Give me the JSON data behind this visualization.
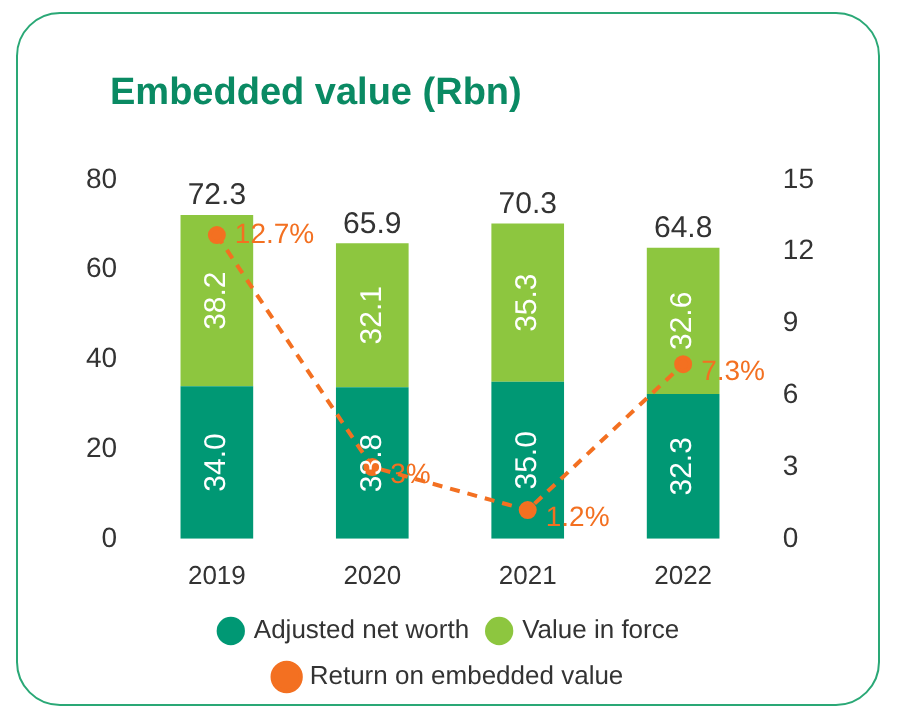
{
  "chart_data": {
    "type": "bar",
    "title": "Embedded value (Rbn)",
    "categories": [
      "2019",
      "2020",
      "2021",
      "2022"
    ],
    "stacked": true,
    "series": [
      {
        "name": "Adjusted net worth",
        "color": "#009874",
        "values": [
          34.0,
          33.8,
          35.0,
          32.3
        ],
        "value_labels": [
          "34.0",
          "33.8",
          "35.0",
          "32.3"
        ]
      },
      {
        "name": "Value in force",
        "color": "#8dc63f",
        "values": [
          38.2,
          32.1,
          35.3,
          32.6
        ],
        "value_labels": [
          "38.2",
          "32.1",
          "35.3",
          "32.6"
        ]
      },
      {
        "name": "Return on embedded value",
        "type": "line",
        "axis": "y2",
        "color": "#f37021",
        "line_style": "dashed",
        "marker": "circle",
        "values": [
          12.7,
          3,
          1.2,
          7.3
        ],
        "value_labels": [
          "12.7%",
          "3%",
          "1.2%",
          "7.3%"
        ]
      }
    ],
    "totals": [
      "72.3",
      "65.9",
      "70.3",
      "64.8"
    ],
    "ylim": [
      0,
      80
    ],
    "yticks": [
      0,
      20,
      40,
      60,
      80
    ],
    "y2lim": [
      0,
      15
    ],
    "y2ticks": [
      0,
      3,
      6,
      9,
      12,
      15
    ],
    "grid": false,
    "legend": "bottom"
  }
}
